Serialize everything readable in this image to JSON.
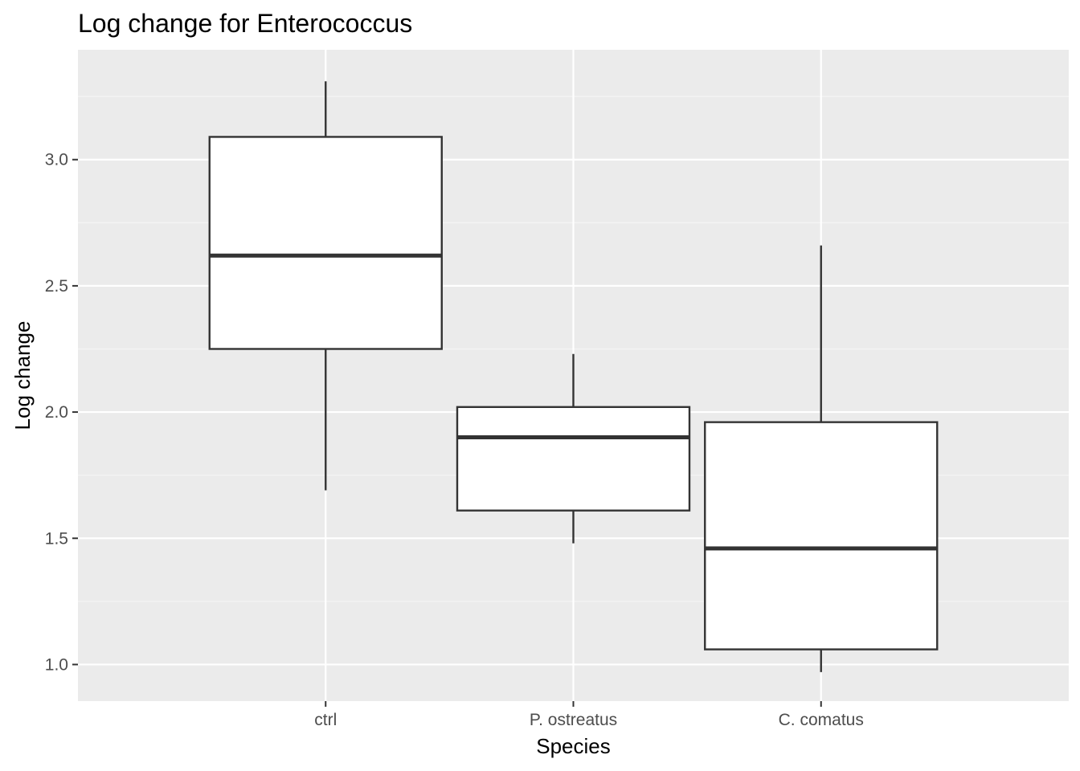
{
  "chart_data": {
    "type": "box",
    "title": "Log change for Enterococcus",
    "xlabel": "Species",
    "ylabel": "Log change",
    "categories": [
      "ctrl",
      "P. ostreatus",
      "C. comatus"
    ],
    "boxes": [
      {
        "category": "ctrl",
        "whisker_low": 1.69,
        "q1": 2.25,
        "median": 2.62,
        "q3": 3.09,
        "whisker_high": 3.31
      },
      {
        "category": "P. ostreatus",
        "whisker_low": 1.48,
        "q1": 1.61,
        "median": 1.9,
        "q3": 2.02,
        "whisker_high": 2.23
      },
      {
        "category": "C. comatus",
        "whisker_low": 0.97,
        "q1": 1.06,
        "median": 1.46,
        "q3": 1.96,
        "whisker_high": 2.66
      }
    ],
    "y_ticks": [
      "1.0",
      "1.5",
      "2.0",
      "2.5",
      "3.0"
    ],
    "ylim": [
      0.855,
      3.435
    ],
    "grid": true,
    "colors": {
      "panel_background": "#ebebeb",
      "grid_major": "#ffffff",
      "grid_minor": "#f5f5f5",
      "box_fill": "#ffffff",
      "box_outline": "#333333",
      "tick_label": "#4d4d4d",
      "tick_mark": "#333333"
    }
  }
}
